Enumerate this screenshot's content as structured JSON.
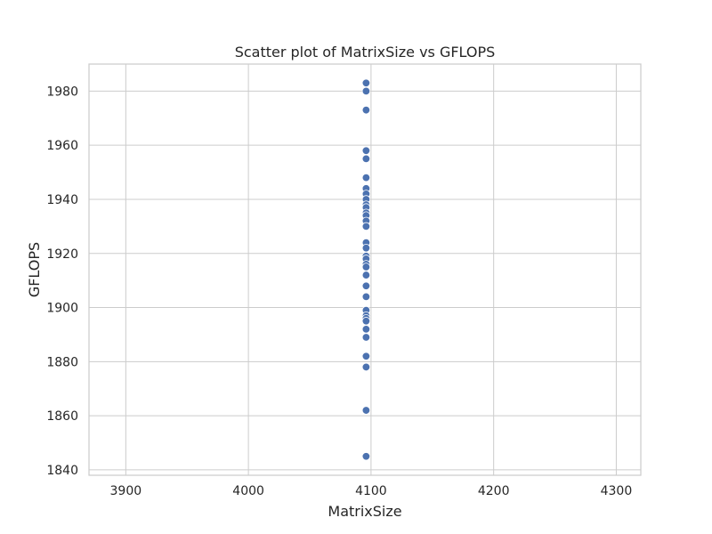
{
  "chart_data": {
    "type": "scatter",
    "title": "Scatter plot of MatrixSize vs GFLOPS",
    "xlabel": "MatrixSize",
    "ylabel": "GFLOPS",
    "xlim": [
      3870,
      4320
    ],
    "ylim": [
      1838,
      1990
    ],
    "x_ticks": [
      3900,
      4000,
      4100,
      4200,
      4300
    ],
    "y_ticks": [
      1840,
      1860,
      1880,
      1900,
      1920,
      1940,
      1960,
      1980
    ],
    "grid": true,
    "legend": "none",
    "point_color": "#4c72b0",
    "grid_color": "#cccccc",
    "points": [
      {
        "x": 4096,
        "y": 1983
      },
      {
        "x": 4096,
        "y": 1980
      },
      {
        "x": 4096,
        "y": 1973
      },
      {
        "x": 4096,
        "y": 1958
      },
      {
        "x": 4096,
        "y": 1955
      },
      {
        "x": 4096,
        "y": 1948
      },
      {
        "x": 4096,
        "y": 1944
      },
      {
        "x": 4096,
        "y": 1942
      },
      {
        "x": 4096,
        "y": 1940
      },
      {
        "x": 4096,
        "y": 1938
      },
      {
        "x": 4096,
        "y": 1937
      },
      {
        "x": 4096,
        "y": 1935
      },
      {
        "x": 4096,
        "y": 1934
      },
      {
        "x": 4096,
        "y": 1932
      },
      {
        "x": 4096,
        "y": 1930
      },
      {
        "x": 4096,
        "y": 1924
      },
      {
        "x": 4096,
        "y": 1922
      },
      {
        "x": 4096,
        "y": 1919
      },
      {
        "x": 4096,
        "y": 1918
      },
      {
        "x": 4096,
        "y": 1916
      },
      {
        "x": 4096,
        "y": 1915
      },
      {
        "x": 4096,
        "y": 1912
      },
      {
        "x": 4096,
        "y": 1908
      },
      {
        "x": 4096,
        "y": 1904
      },
      {
        "x": 4096,
        "y": 1899
      },
      {
        "x": 4096,
        "y": 1897
      },
      {
        "x": 4096,
        "y": 1896
      },
      {
        "x": 4096,
        "y": 1895
      },
      {
        "x": 4096,
        "y": 1892
      },
      {
        "x": 4096,
        "y": 1889
      },
      {
        "x": 4096,
        "y": 1882
      },
      {
        "x": 4096,
        "y": 1878
      },
      {
        "x": 4096,
        "y": 1862
      },
      {
        "x": 4096,
        "y": 1845
      }
    ]
  }
}
